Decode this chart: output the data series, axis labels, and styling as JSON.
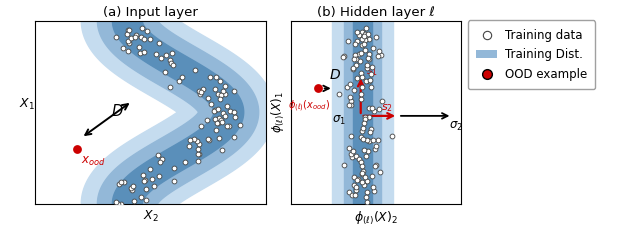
{
  "title_a": "(a) Input layer",
  "title_b": "(b) Hidden layer ℓ",
  "xlabel_a": "$X_2$",
  "ylabel_a": "$X_1$",
  "xlabel_b": "$\\phi_{(\\ell)}(X)_2$",
  "ylabel_b": "$\\phi_{(\\ell)}(X)_1$",
  "ood_color": "#cc0000",
  "band_color_light": "#c5dcef",
  "band_color_mid": "#93b8d8",
  "band_color_dark": "#5a8fba",
  "fig_bg": "#ffffff",
  "legend_items": [
    "Training data",
    "Training Dist.",
    "OOD example"
  ]
}
